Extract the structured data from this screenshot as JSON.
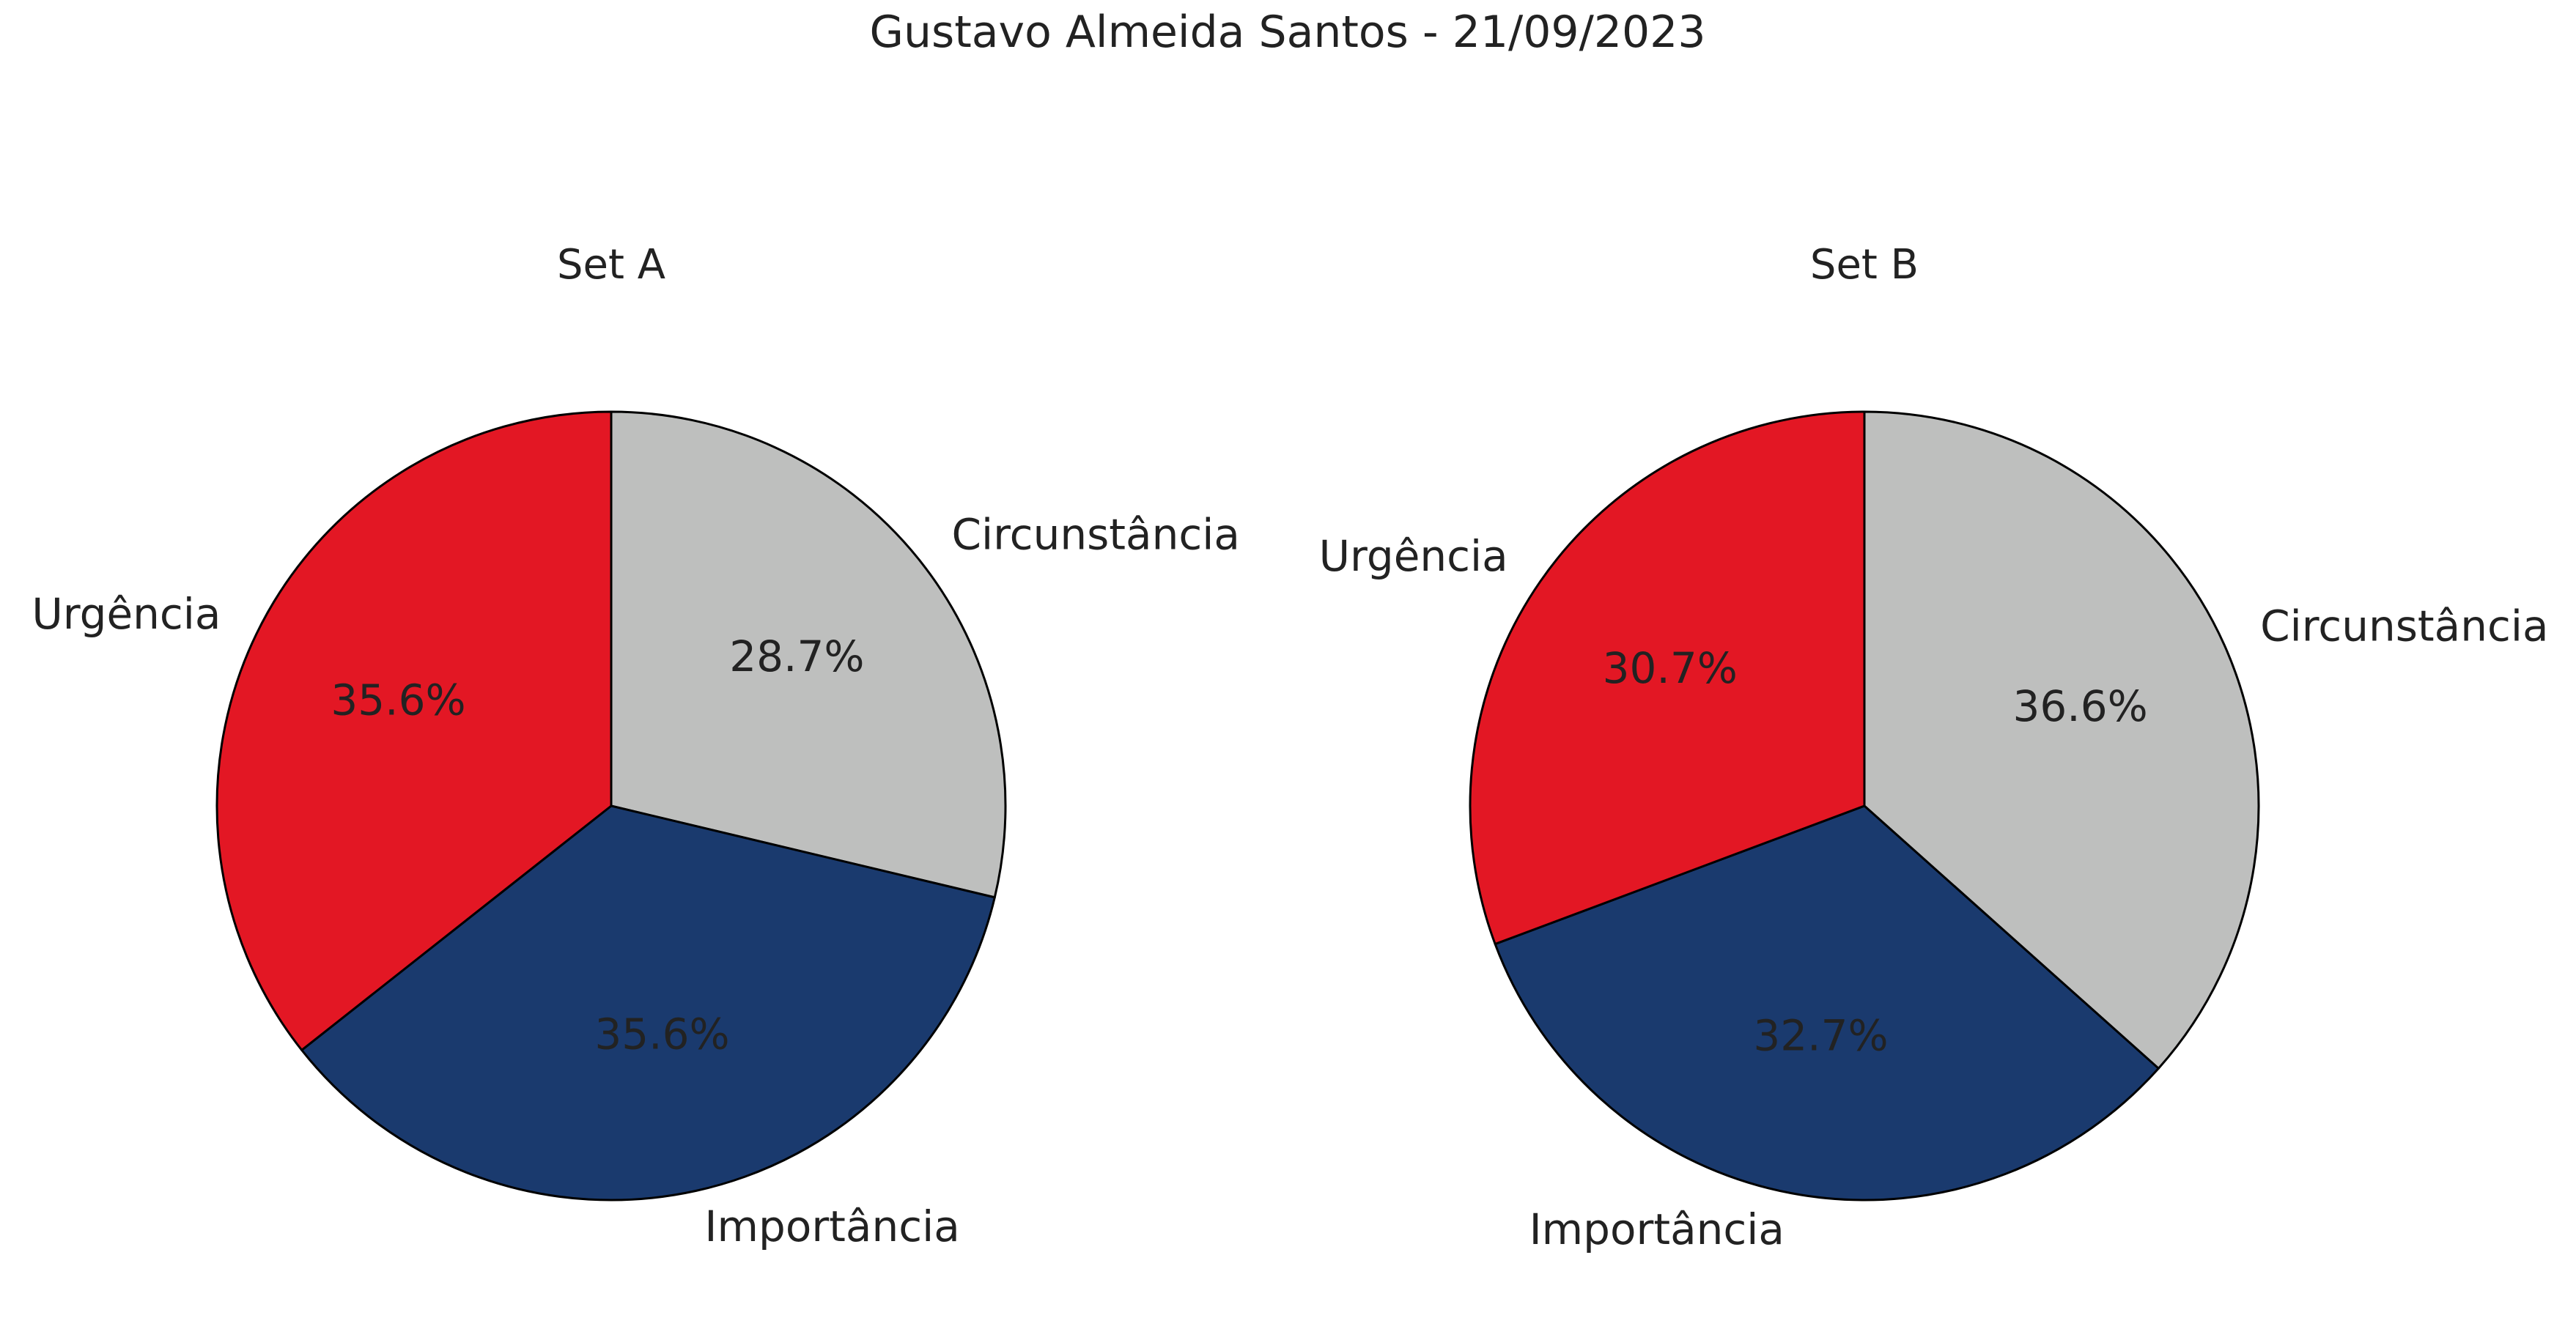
{
  "title": "Gustavo Almeida Santos - 21/09/2023",
  "chart_data": [
    {
      "type": "pie",
      "title": "Set A",
      "start_angle_deg": 90,
      "direction": "clockwise",
      "edge_color": "#000000",
      "slices": [
        {
          "label": "Circunstância",
          "value": 28.7,
          "display": "28.7%",
          "color": "#bebfbe"
        },
        {
          "label": "Importância",
          "value": 35.6,
          "display": "35.6%",
          "color": "#1a3a6e"
        },
        {
          "label": "Urgência",
          "value": 35.6,
          "display": "35.6%",
          "color": "#e31724"
        }
      ]
    },
    {
      "type": "pie",
      "title": "Set B",
      "start_angle_deg": 90,
      "direction": "clockwise",
      "edge_color": "#000000",
      "slices": [
        {
          "label": "Circunstância",
          "value": 36.6,
          "display": "36.6%",
          "color": "#bebfbe"
        },
        {
          "label": "Importância",
          "value": 32.7,
          "display": "32.7%",
          "color": "#1a3a6e"
        },
        {
          "label": "Urgência",
          "value": 30.7,
          "display": "30.7%",
          "color": "#e31724"
        }
      ]
    }
  ]
}
